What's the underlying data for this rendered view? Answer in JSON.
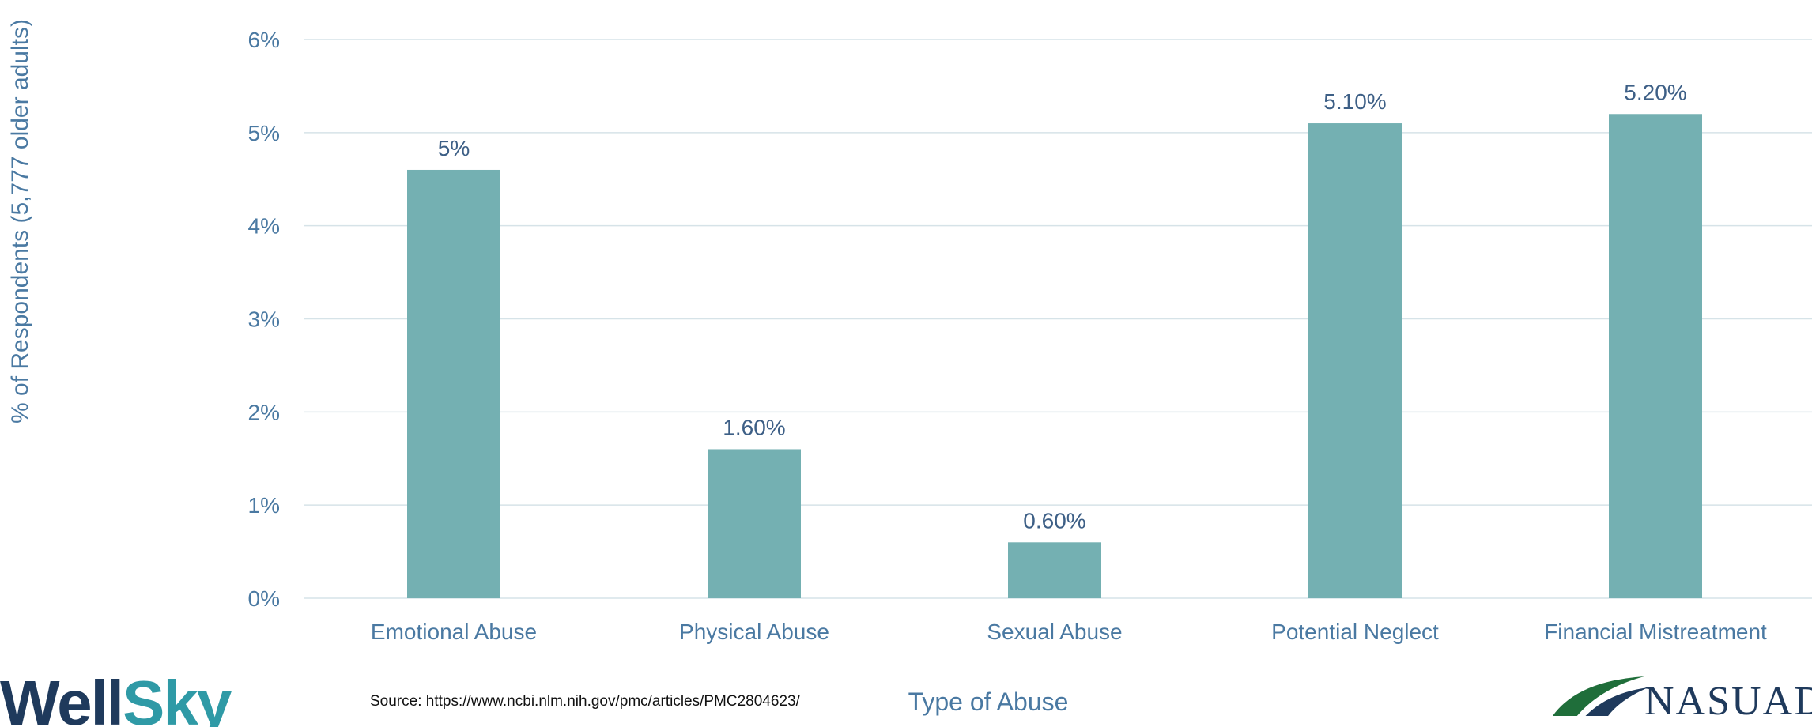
{
  "chart_data": {
    "type": "bar",
    "categories": [
      "Emotional Abuse",
      "Physical Abuse",
      "Sexual Abuse",
      "Potential Neglect",
      "Financial Mistreatment"
    ],
    "values": [
      4.6,
      1.6,
      0.6,
      5.1,
      5.2
    ],
    "data_labels": [
      "5%",
      "1.60%",
      "0.60%",
      "5.10%",
      "5.20%"
    ],
    "yticks": [
      "0%",
      "1%",
      "2%",
      "3%",
      "4%",
      "5%",
      "6%"
    ],
    "ylim": [
      0,
      6
    ],
    "xlabel": "Type of Abuse",
    "ylabel": "% of Respondents (5,777 older adults)",
    "grid": true,
    "bar_color": "#74b0b2",
    "grid_color": "#d6e3e8",
    "text_color": "#4a79a2"
  },
  "source": "Source: https://www.ncbi.nlm.nih.gov/pmc/articles/PMC2804623/",
  "logos": {
    "left_part1": "Well",
    "left_part2": "Sky",
    "right": "NASUAD"
  }
}
